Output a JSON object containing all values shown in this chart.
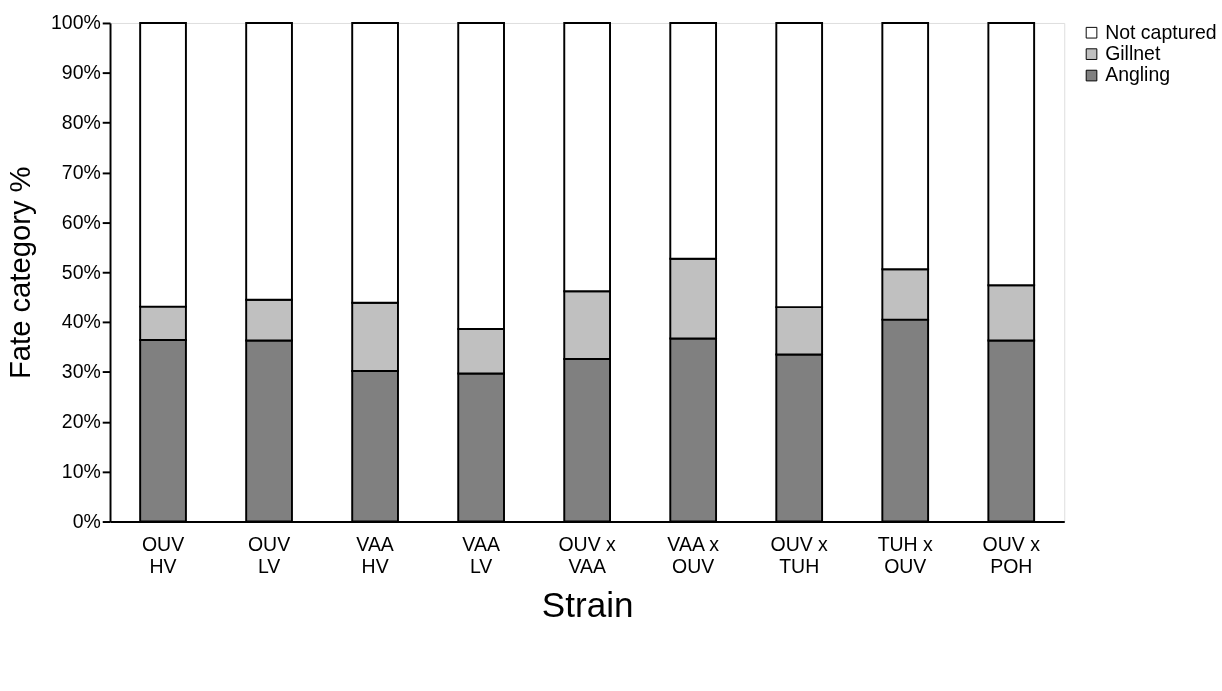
{
  "chart_data": {
    "type": "bar",
    "stacked": true,
    "xlabel": "Strain",
    "ylabel": "Fate category %",
    "categories": [
      "OUV\nHV",
      "OUV\nLV",
      "VAA\nHV",
      "VAA\nLV",
      "OUV x\nVAA",
      "VAA x\nOUV",
      "OUV x\nTUH",
      "TUH x\nOUV",
      "OUV x\nPOH"
    ],
    "series": [
      {
        "name": "Angling",
        "color": "#808080",
        "values": [
          36.4,
          36.3,
          30.2,
          29.7,
          32.6,
          36.7,
          33.5,
          40.5,
          36.3
        ]
      },
      {
        "name": "Gillnet",
        "color": "#c0c0c0",
        "values": [
          6.7,
          8.2,
          13.7,
          8.9,
          13.6,
          16.0,
          9.5,
          10.1,
          11.1
        ]
      },
      {
        "name": "Not captured",
        "color": "#ffffff",
        "values": [
          56.9,
          55.5,
          56.1,
          61.4,
          53.8,
          47.3,
          57.0,
          49.4,
          52.6
        ]
      }
    ],
    "ylim": [
      0,
      100
    ],
    "yticks": [
      {
        "value": 0,
        "label": "0%"
      },
      {
        "value": 10,
        "label": "10%"
      },
      {
        "value": 20,
        "label": "20%"
      },
      {
        "value": 30,
        "label": "30%"
      },
      {
        "value": 40,
        "label": "40%"
      },
      {
        "value": 50,
        "label": "50%"
      },
      {
        "value": 60,
        "label": "60%"
      },
      {
        "value": 70,
        "label": "70%"
      },
      {
        "value": 80,
        "label": "80%"
      },
      {
        "value": 90,
        "label": "90%"
      },
      {
        "value": 100,
        "label": "100%"
      }
    ],
    "grid": false,
    "legend": "right"
  }
}
